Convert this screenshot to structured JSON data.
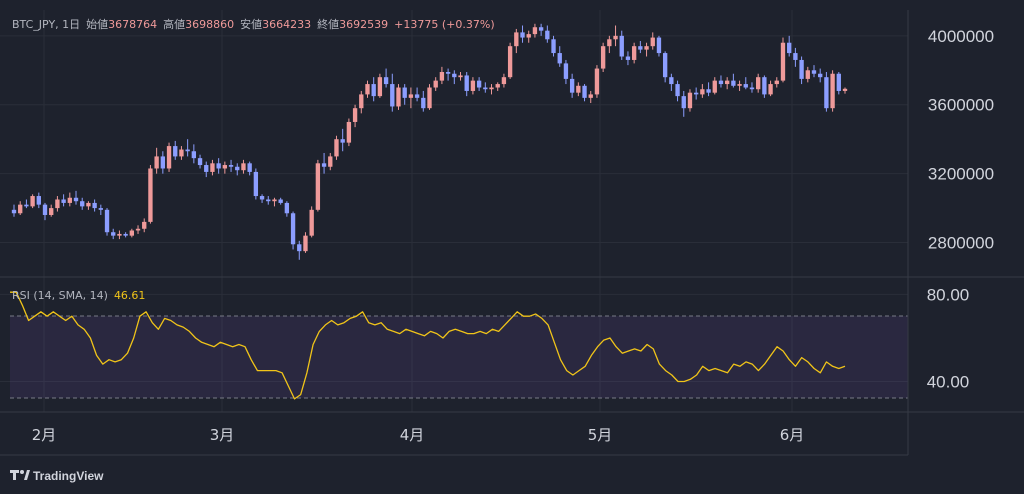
{
  "header": {
    "symbol": "BTC_JPY",
    "interval": "1日",
    "open_label": "始値",
    "open_value": "3678764",
    "high_label": "高値",
    "high_value": "3698860",
    "low_label": "安値",
    "low_value": "3664233",
    "close_label": "終値",
    "close_value": "3692539",
    "change": "+13775 (+0.37%)"
  },
  "rsi_header": {
    "label": "RSI (14, SMA, 14)",
    "value": "46.61"
  },
  "branding": {
    "logo_text": "TradingView"
  },
  "colors": {
    "background": "#1e222d",
    "up_candle": "#ef9a9a",
    "down_candle": "#8c9eff",
    "rsi_line": "#f0c419",
    "rsi_band": "#7e57c2",
    "grid": "#2a2e39"
  },
  "chart_data": [
    {
      "type": "candlestick",
      "title": "",
      "y_axis_ticks": [
        2800000,
        3200000,
        3600000,
        4000000
      ],
      "ylim": [
        2600000,
        4150000
      ],
      "x_axis_ticks": [
        "2月",
        "3月",
        "4月",
        "5月",
        "6月"
      ],
      "grid": true,
      "series": [
        {
          "ohlc_approx": [
            [
              2990000,
              3020000,
              2950000,
              2970000
            ],
            [
              2970000,
              3040000,
              2960000,
              3020000
            ],
            [
              3020000,
              3050000,
              3000000,
              3010000
            ],
            [
              3010000,
              3080000,
              3000000,
              3070000
            ],
            [
              3070000,
              3090000,
              3000000,
              3020000
            ],
            [
              3020000,
              3030000,
              2930000,
              2960000
            ],
            [
              2960000,
              3020000,
              2950000,
              3000000
            ],
            [
              3000000,
              3070000,
              2980000,
              3050000
            ],
            [
              3050000,
              3080000,
              3010000,
              3030000
            ],
            [
              3030000,
              3090000,
              3010000,
              3060000
            ],
            [
              3060000,
              3100000,
              3020000,
              3040000
            ],
            [
              3040000,
              3060000,
              2990000,
              3010000
            ],
            [
              3010000,
              3040000,
              2990000,
              3030000
            ],
            [
              3030000,
              3050000,
              2980000,
              3000000
            ],
            [
              3000000,
              3020000,
              2960000,
              2990000
            ],
            [
              2990000,
              3000000,
              2840000,
              2860000
            ],
            [
              2860000,
              2880000,
              2820000,
              2840000
            ],
            [
              2840000,
              2870000,
              2820000,
              2850000
            ],
            [
              2850000,
              2860000,
              2830000,
              2840000
            ],
            [
              2840000,
              2880000,
              2830000,
              2870000
            ],
            [
              2870000,
              2900000,
              2850000,
              2880000
            ],
            [
              2880000,
              2940000,
              2860000,
              2920000
            ],
            [
              2920000,
              3250000,
              2910000,
              3230000
            ],
            [
              3230000,
              3350000,
              3200000,
              3300000
            ],
            [
              3300000,
              3330000,
              3200000,
              3230000
            ],
            [
              3230000,
              3380000,
              3210000,
              3360000
            ],
            [
              3360000,
              3390000,
              3280000,
              3300000
            ],
            [
              3300000,
              3360000,
              3280000,
              3340000
            ],
            [
              3340000,
              3400000,
              3300000,
              3330000
            ],
            [
              3330000,
              3370000,
              3260000,
              3290000
            ],
            [
              3290000,
              3310000,
              3230000,
              3250000
            ],
            [
              3250000,
              3270000,
              3180000,
              3210000
            ],
            [
              3210000,
              3280000,
              3190000,
              3260000
            ],
            [
              3260000,
              3290000,
              3200000,
              3230000
            ],
            [
              3230000,
              3270000,
              3200000,
              3250000
            ],
            [
              3250000,
              3280000,
              3210000,
              3240000
            ],
            [
              3240000,
              3260000,
              3190000,
              3220000
            ],
            [
              3220000,
              3280000,
              3200000,
              3260000
            ],
            [
              3260000,
              3270000,
              3190000,
              3210000
            ],
            [
              3210000,
              3230000,
              3050000,
              3070000
            ],
            [
              3070000,
              3080000,
              3030000,
              3050000
            ],
            [
              3050000,
              3070000,
              3020000,
              3040000
            ],
            [
              3040000,
              3060000,
              3010000,
              3050000
            ],
            [
              3050000,
              3060000,
              3020000,
              3030000
            ],
            [
              3030000,
              3040000,
              2950000,
              2970000
            ],
            [
              2970000,
              2980000,
              2760000,
              2790000
            ],
            [
              2790000,
              2810000,
              2700000,
              2750000
            ],
            [
              2750000,
              2860000,
              2740000,
              2840000
            ],
            [
              2840000,
              3010000,
              2830000,
              2990000
            ],
            [
              2990000,
              3280000,
              2980000,
              3260000
            ],
            [
              3260000,
              3320000,
              3200000,
              3240000
            ],
            [
              3240000,
              3320000,
              3220000,
              3300000
            ],
            [
              3300000,
              3420000,
              3280000,
              3400000
            ],
            [
              3400000,
              3460000,
              3330000,
              3380000
            ],
            [
              3380000,
              3520000,
              3360000,
              3500000
            ],
            [
              3500000,
              3600000,
              3470000,
              3580000
            ],
            [
              3580000,
              3680000,
              3550000,
              3660000
            ],
            [
              3660000,
              3740000,
              3640000,
              3720000
            ],
            [
              3720000,
              3760000,
              3620000,
              3650000
            ],
            [
              3650000,
              3780000,
              3640000,
              3760000
            ],
            [
              3760000,
              3810000,
              3700000,
              3720000
            ],
            [
              3720000,
              3780000,
              3560000,
              3590000
            ],
            [
              3590000,
              3720000,
              3570000,
              3700000
            ],
            [
              3700000,
              3720000,
              3600000,
              3640000
            ],
            [
              3640000,
              3700000,
              3580000,
              3660000
            ],
            [
              3660000,
              3700000,
              3620000,
              3640000
            ],
            [
              3640000,
              3680000,
              3560000,
              3580000
            ],
            [
              3580000,
              3720000,
              3570000,
              3700000
            ],
            [
              3700000,
              3760000,
              3680000,
              3740000
            ],
            [
              3740000,
              3820000,
              3720000,
              3790000
            ],
            [
              3790000,
              3810000,
              3740000,
              3780000
            ],
            [
              3780000,
              3800000,
              3720000,
              3760000
            ],
            [
              3760000,
              3790000,
              3740000,
              3770000
            ],
            [
              3770000,
              3790000,
              3650000,
              3680000
            ],
            [
              3680000,
              3760000,
              3660000,
              3740000
            ],
            [
              3740000,
              3760000,
              3680000,
              3700000
            ],
            [
              3700000,
              3730000,
              3670000,
              3690000
            ],
            [
              3690000,
              3720000,
              3660000,
              3700000
            ],
            [
              3700000,
              3730000,
              3680000,
              3720000
            ],
            [
              3720000,
              3780000,
              3700000,
              3760000
            ],
            [
              3760000,
              3960000,
              3750000,
              3940000
            ],
            [
              3940000,
              4040000,
              3900000,
              4020000
            ],
            [
              4020000,
              4060000,
              3960000,
              3990000
            ],
            [
              3990000,
              4030000,
              3960000,
              4010000
            ],
            [
              4010000,
              4070000,
              3990000,
              4050000
            ],
            [
              4050000,
              4070000,
              4000000,
              4030000
            ],
            [
              4030000,
              4060000,
              3960000,
              3980000
            ],
            [
              3980000,
              4000000,
              3880000,
              3900000
            ],
            [
              3900000,
              3940000,
              3820000,
              3840000
            ],
            [
              3840000,
              3860000,
              3720000,
              3750000
            ],
            [
              3750000,
              3780000,
              3640000,
              3670000
            ],
            [
              3670000,
              3730000,
              3650000,
              3710000
            ],
            [
              3710000,
              3720000,
              3620000,
              3640000
            ],
            [
              3640000,
              3680000,
              3610000,
              3660000
            ],
            [
              3660000,
              3830000,
              3640000,
              3810000
            ],
            [
              3810000,
              3960000,
              3790000,
              3940000
            ],
            [
              3940000,
              4000000,
              3900000,
              3980000
            ],
            [
              3980000,
              4060000,
              3940000,
              4000000
            ],
            [
              4000000,
              4030000,
              3860000,
              3880000
            ],
            [
              3880000,
              3910000,
              3830000,
              3860000
            ],
            [
              3860000,
              3960000,
              3840000,
              3940000
            ],
            [
              3940000,
              3970000,
              3900000,
              3920000
            ],
            [
              3920000,
              3960000,
              3880000,
              3940000
            ],
            [
              3940000,
              4020000,
              3920000,
              3990000
            ],
            [
              3990000,
              4000000,
              3880000,
              3900000
            ],
            [
              3900000,
              3910000,
              3730000,
              3760000
            ],
            [
              3760000,
              3780000,
              3680000,
              3720000
            ],
            [
              3720000,
              3740000,
              3620000,
              3650000
            ],
            [
              3650000,
              3680000,
              3530000,
              3580000
            ],
            [
              3580000,
              3690000,
              3560000,
              3670000
            ],
            [
              3670000,
              3700000,
              3630000,
              3660000
            ],
            [
              3660000,
              3720000,
              3640000,
              3690000
            ],
            [
              3690000,
              3730000,
              3650000,
              3670000
            ],
            [
              3670000,
              3760000,
              3660000,
              3740000
            ],
            [
              3740000,
              3770000,
              3700000,
              3720000
            ],
            [
              3720000,
              3760000,
              3690000,
              3740000
            ],
            [
              3740000,
              3780000,
              3700000,
              3710000
            ],
            [
              3710000,
              3740000,
              3680000,
              3720000
            ],
            [
              3720000,
              3760000,
              3690000,
              3700000
            ],
            [
              3700000,
              3730000,
              3670000,
              3690000
            ],
            [
              3690000,
              3780000,
              3670000,
              3760000
            ],
            [
              3760000,
              3770000,
              3640000,
              3660000
            ],
            [
              3660000,
              3740000,
              3650000,
              3720000
            ],
            [
              3720000,
              3760000,
              3700000,
              3740000
            ],
            [
              3740000,
              3990000,
              3730000,
              3960000
            ],
            [
              3960000,
              4000000,
              3880000,
              3900000
            ],
            [
              3900000,
              3930000,
              3820000,
              3860000
            ],
            [
              3860000,
              3880000,
              3720000,
              3750000
            ],
            [
              3750000,
              3820000,
              3730000,
              3800000
            ],
            [
              3800000,
              3830000,
              3760000,
              3780000
            ],
            [
              3780000,
              3810000,
              3730000,
              3760000
            ],
            [
              3760000,
              3790000,
              3560000,
              3580000
            ],
            [
              3580000,
              3800000,
              3560000,
              3780000
            ],
            [
              3780000,
              3790000,
              3660000,
              3680000
            ],
            [
              3680000,
              3700000,
              3664233,
              3692539
            ]
          ]
        }
      ]
    },
    {
      "type": "line",
      "title": "RSI (14, SMA, 14)",
      "y_axis_ticks": [
        40,
        80
      ],
      "ylim": [
        26,
        88
      ],
      "band": [
        30,
        70
      ],
      "series": [
        {
          "name": "RSI (14, SMA, 14)",
          "values": [
            81,
            81,
            75,
            68,
            70,
            72,
            70,
            72,
            70,
            68,
            70,
            66,
            64,
            60,
            52,
            48,
            50,
            49,
            50,
            53,
            60,
            70,
            72,
            67,
            64,
            69,
            68,
            66,
            65,
            63,
            60,
            58,
            57,
            56,
            58,
            57,
            56,
            57,
            56,
            50,
            45,
            45,
            45,
            45,
            44,
            38,
            32,
            34,
            44,
            57,
            63,
            66,
            68,
            66,
            67,
            69,
            70,
            72,
            67,
            66,
            67,
            64,
            63,
            62,
            64,
            63,
            62,
            61,
            63,
            62,
            60,
            63,
            64,
            63,
            62,
            62,
            63,
            62,
            64,
            63,
            66,
            69,
            72,
            70,
            70,
            71,
            69,
            66,
            58,
            50,
            45,
            43,
            45,
            47,
            52,
            56,
            59,
            60,
            56,
            53,
            54,
            55,
            54,
            57,
            55,
            48,
            45,
            43,
            40,
            40,
            41,
            43,
            47,
            45,
            46,
            45,
            44,
            48,
            47,
            49,
            48,
            45,
            48,
            52,
            56,
            54,
            50,
            47,
            51,
            49,
            46,
            44,
            49,
            47,
            46,
            47
          ]
        }
      ]
    }
  ]
}
